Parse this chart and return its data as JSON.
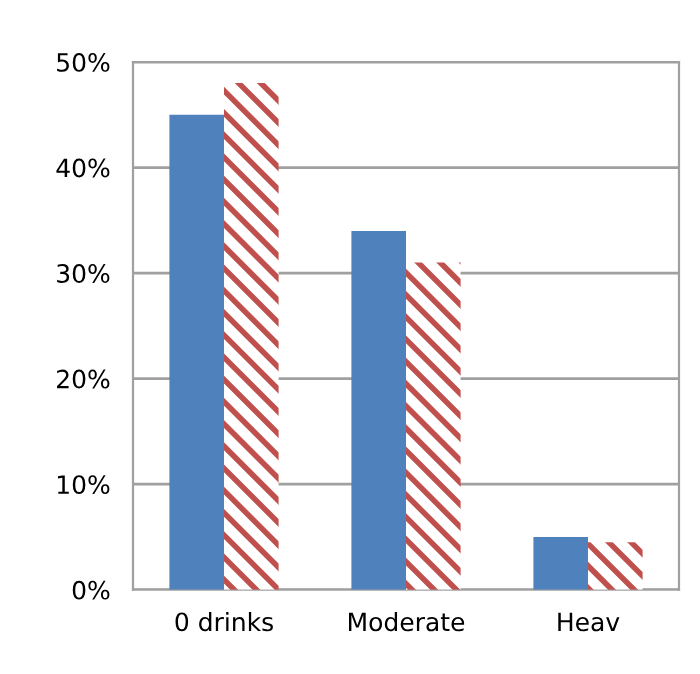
{
  "chart_data": {
    "type": "bar",
    "categories": [
      "0 drinks",
      "Moderate",
      "Heav"
    ],
    "series": [
      {
        "color": "#4f81bd",
        "values": [
          45,
          34,
          5
        ]
      },
      {
        "color": "#c0504d",
        "values": [
          48,
          31,
          4.5
        ]
      }
    ],
    "ylim": [
      0,
      50
    ],
    "yticks": [
      {
        "value": 0,
        "label": "0%"
      },
      {
        "value": 10,
        "label": "10%"
      },
      {
        "value": 20,
        "label": "20%"
      },
      {
        "value": 30,
        "label": "30%"
      },
      {
        "value": 40,
        "label": "40%"
      },
      {
        "value": 50,
        "label": "50%"
      }
    ],
    "grid": "y",
    "legend": false
  }
}
